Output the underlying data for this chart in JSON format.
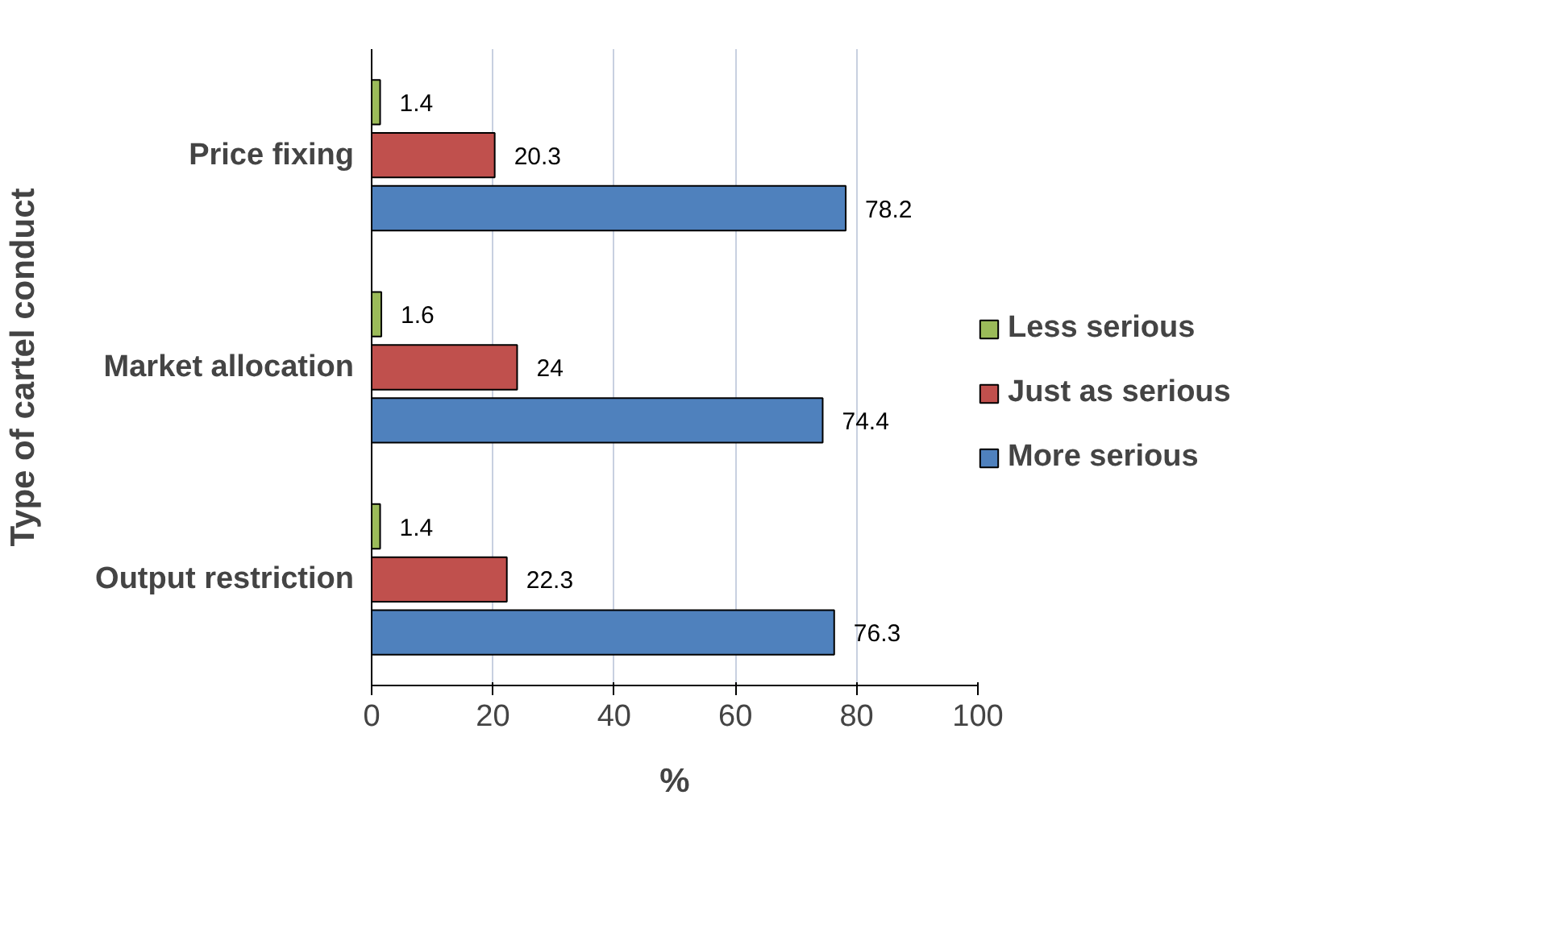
{
  "chart_data": {
    "type": "bar",
    "orientation": "horizontal",
    "xlabel": "%",
    "ylabel": "Type of cartel conduct",
    "categories": [
      "Price fixing",
      "Market allocation",
      "Output restriction"
    ],
    "series": [
      {
        "name": "Less serious",
        "color": "#9bbb59",
        "values": [
          1.4,
          1.6,
          1.4
        ]
      },
      {
        "name": "Just as serious",
        "color": "#c0504d",
        "values": [
          20.3,
          24,
          22.3
        ]
      },
      {
        "name": "More serious",
        "color": "#4f81bd",
        "values": [
          78.2,
          74.4,
          76.3
        ]
      }
    ],
    "xlim": [
      0,
      100
    ],
    "xticks": [
      0,
      20,
      40,
      60,
      80,
      100
    ],
    "grid": "x",
    "legend": "right",
    "data_labels": true
  }
}
